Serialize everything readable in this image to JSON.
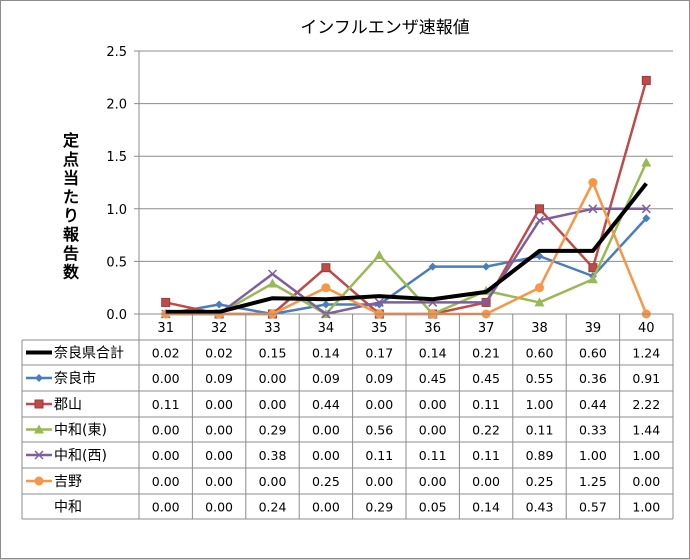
{
  "chart_data": {
    "type": "line",
    "title": "インフルエンザ速報値",
    "xlabel": "",
    "ylabel": "定点当たり報告数",
    "ylim": [
      0,
      2.5
    ],
    "yticks": [
      "0.0",
      "0.5",
      "1.0",
      "1.5",
      "2.0",
      "2.5"
    ],
    "grid": true,
    "legend": "data-table",
    "categories": [
      "31",
      "32",
      "33",
      "34",
      "35",
      "36",
      "37",
      "38",
      "39",
      "40"
    ],
    "series": [
      {
        "name": "奈良県合計",
        "color": "#000000",
        "marker": "none",
        "plotted": true,
        "values": [
          0.02,
          0.02,
          0.15,
          0.14,
          0.17,
          0.14,
          0.21,
          0.6,
          0.6,
          1.24
        ]
      },
      {
        "name": "奈良市",
        "color": "#4a7ebb",
        "marker": "diamond",
        "plotted": true,
        "values": [
          0.0,
          0.09,
          0.0,
          0.09,
          0.09,
          0.45,
          0.45,
          0.55,
          0.36,
          0.91
        ]
      },
      {
        "name": "郡山",
        "color": "#be4b48",
        "marker": "square",
        "plotted": true,
        "values": [
          0.11,
          0.0,
          0.0,
          0.44,
          0.0,
          0.0,
          0.11,
          1.0,
          0.44,
          2.22
        ]
      },
      {
        "name": "中和(東)",
        "color": "#98b954",
        "marker": "triangle",
        "plotted": true,
        "values": [
          0.0,
          0.0,
          0.29,
          0.0,
          0.56,
          0.0,
          0.22,
          0.11,
          0.33,
          1.44
        ]
      },
      {
        "name": "中和(西)",
        "color": "#7d5fa0",
        "marker": "x",
        "plotted": true,
        "values": [
          0.0,
          0.0,
          0.38,
          0.0,
          0.11,
          0.11,
          0.11,
          0.89,
          1.0,
          1.0
        ]
      },
      {
        "name": "吉野",
        "color": "#f79646",
        "marker": "circle",
        "plotted": true,
        "values": [
          0.0,
          0.0,
          0.0,
          0.25,
          0.0,
          0.0,
          0.0,
          0.25,
          1.25,
          0.0
        ]
      },
      {
        "name": "中和",
        "color": "#000000",
        "marker": "none",
        "plotted": false,
        "values": [
          0.0,
          0.0,
          0.24,
          0.0,
          0.29,
          0.05,
          0.14,
          0.43,
          0.57,
          1.0
        ]
      }
    ]
  }
}
